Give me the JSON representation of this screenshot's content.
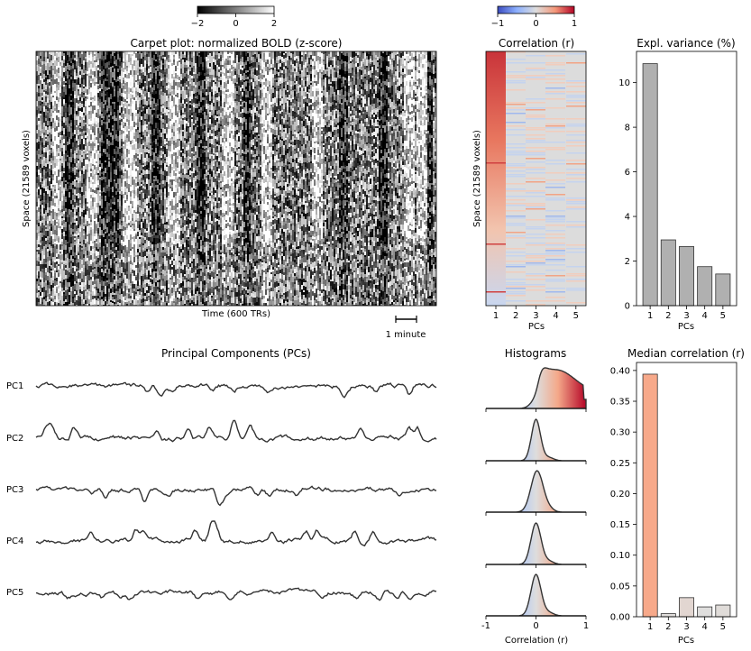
{
  "colors": {
    "bar_variance": "#b0b0b0",
    "bar_median_pc1": "#f7a98a",
    "bar_median_pc2": "#e1dedc",
    "bar_median_pc3": "#e2d6d1",
    "bar_median_pc4": "#dfdedd",
    "bar_median_pc5": "#e0dcd9",
    "trace": "#333333"
  },
  "chart_data": [
    {
      "type": "heatmap",
      "id": "carpet",
      "title": "Carpet plot: normalized BOLD (z-score)",
      "xlabel": "Time (600 TRs)",
      "ylabel": "Space (21589 voxels)",
      "scale_label": "1 minute",
      "colorbar": {
        "ticks": [
          "−2",
          "0",
          "2"
        ],
        "range": [
          -2,
          2
        ],
        "colormap": "gray"
      }
    },
    {
      "type": "heatmap",
      "id": "correlation",
      "title": "Correlation (r)",
      "xlabel": "PCs",
      "ylabel": "Space (21589 voxels)",
      "categories": [
        "1",
        "2",
        "3",
        "4",
        "5"
      ],
      "colorbar": {
        "ticks": [
          "−1",
          "0",
          "1"
        ],
        "range": [
          -1,
          1
        ],
        "colormap": "coolwarm"
      }
    },
    {
      "type": "bar",
      "id": "variance",
      "title": "Expl. variance (%)",
      "xlabel": "PCs",
      "categories": [
        "1",
        "2",
        "3",
        "4",
        "5"
      ],
      "values": [
        10.85,
        2.95,
        2.65,
        1.75,
        1.42
      ],
      "ylim": [
        0,
        11.4
      ],
      "yticks": [
        "0",
        "2",
        "4",
        "6",
        "8",
        "10"
      ],
      "ytick_values": [
        0,
        2,
        4,
        6,
        8,
        10
      ]
    },
    {
      "type": "line",
      "id": "pcs",
      "title": "Principal Components (PCs)",
      "series": [
        {
          "name": "PC1"
        },
        {
          "name": "PC2"
        },
        {
          "name": "PC3"
        },
        {
          "name": "PC4"
        },
        {
          "name": "PC5"
        }
      ]
    },
    {
      "type": "area",
      "id": "histograms",
      "title": "Histograms",
      "xlabel": "Correlation (r)",
      "xticks": [
        "-1",
        "0",
        "1"
      ],
      "xlim": [
        -1,
        1
      ]
    },
    {
      "type": "bar",
      "id": "median",
      "title": "Median correlation (r)",
      "xlabel": "PCs",
      "categories": [
        "1",
        "2",
        "3",
        "4",
        "5"
      ],
      "values": [
        0.394,
        0.005,
        0.031,
        0.016,
        0.019
      ],
      "ylim": [
        0,
        0.413
      ],
      "yticks": [
        "0.00",
        "0.05",
        "0.10",
        "0.15",
        "0.20",
        "0.25",
        "0.30",
        "0.35",
        "0.40"
      ],
      "ytick_values": [
        0,
        0.05,
        0.1,
        0.15,
        0.2,
        0.25,
        0.3,
        0.35,
        0.4
      ]
    }
  ]
}
